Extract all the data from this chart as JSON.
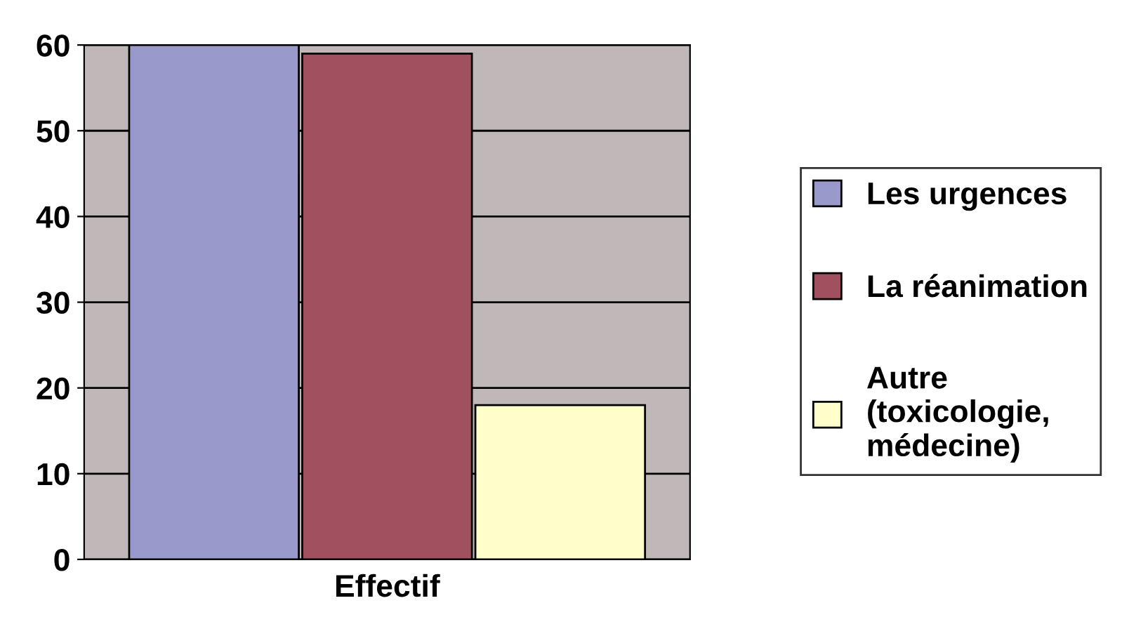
{
  "chart_data": {
    "type": "bar",
    "xlabel": "Effectif",
    "categories": [
      null,
      null,
      null
    ],
    "series": [
      {
        "name": "Les urgences",
        "color": "#9999cc",
        "values": [
          60,
          null,
          null
        ]
      },
      {
        "name": "La réanimation",
        "color": "#a0505e",
        "values": [
          null,
          59,
          null
        ]
      },
      {
        "name": "Autre\n(toxicologie,\nmédecine)",
        "color": "#ffffcc",
        "values": [
          null,
          null,
          18
        ]
      }
    ],
    "ylim": [
      0,
      60
    ],
    "yticks": [
      0,
      10,
      20,
      30,
      40,
      50,
      60
    ],
    "grid": "y",
    "legend": "right"
  }
}
